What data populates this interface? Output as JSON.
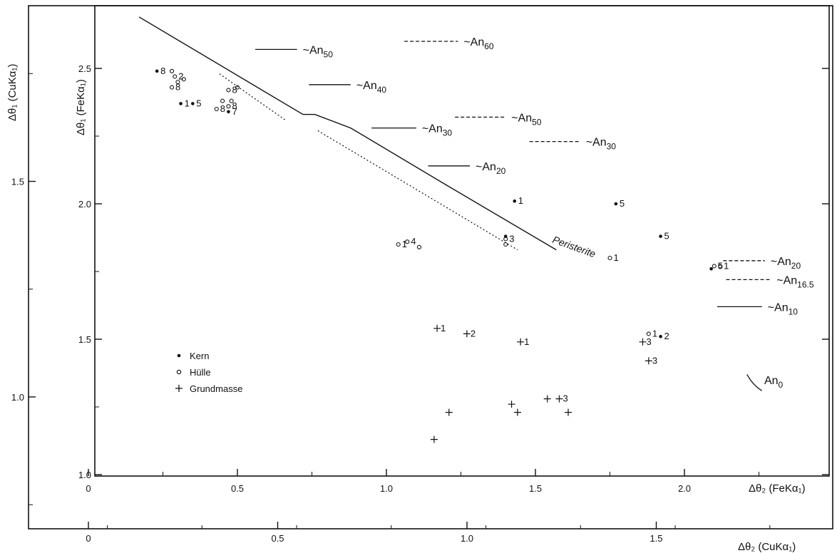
{
  "chart_data": {
    "type": "scatter",
    "outer_axes": {
      "xlabel": "Δθ₂ (CuKα₁)",
      "ylabel": "Δθ₁ (CuKα₁)",
      "x_ticks": [
        "0",
        "0.5",
        "1.0",
        "1.5"
      ],
      "y_ticks": [
        "1.0",
        "1.5",
        "2.0"
      ]
    },
    "inner_axes": {
      "xlabel": "Δθ₂ (FeKα₁)",
      "ylabel": "Δθ₁ (FeKα₁)",
      "x_ticks": [
        "0",
        "0.5",
        "1.0",
        "1.5",
        "2.0"
      ],
      "y_ticks": [
        "1.0",
        "1.5",
        "2.0",
        "2.5"
      ],
      "xlim": [
        0,
        2.45
      ],
      "ylim": [
        1.0,
        2.65
      ]
    },
    "legend": {
      "position": "lower-left",
      "entries": [
        {
          "symbol": "filled",
          "label": "Kern"
        },
        {
          "symbol": "open",
          "label": "Hülle"
        },
        {
          "symbol": "plus",
          "label": "Grundmasse"
        }
      ]
    },
    "series": [
      {
        "name": "Kern",
        "points": [
          {
            "x": 0.23,
            "y": 2.49,
            "label": "8"
          },
          {
            "x": 0.31,
            "y": 2.37,
            "label": "1"
          },
          {
            "x": 0.35,
            "y": 2.37,
            "label": "5"
          },
          {
            "x": 0.47,
            "y": 2.34,
            "label": "7"
          },
          {
            "x": 1.43,
            "y": 2.01,
            "label": "1"
          },
          {
            "x": 1.77,
            "y": 2.0,
            "label": "5"
          },
          {
            "x": 1.92,
            "y": 1.88,
            "label": "5"
          },
          {
            "x": 1.92,
            "y": 1.51,
            "label": "2"
          },
          {
            "x": 2.09,
            "y": 1.76,
            "label": ""
          },
          {
            "x": 1.4,
            "y": 1.88,
            "label": ""
          }
        ]
      },
      {
        "name": "Hülle",
        "points": [
          {
            "x": 0.28,
            "y": 2.49,
            "label": ""
          },
          {
            "x": 0.29,
            "y": 2.47,
            "label": "2"
          },
          {
            "x": 0.3,
            "y": 2.45,
            "label": ""
          },
          {
            "x": 0.32,
            "y": 2.46,
            "label": ""
          },
          {
            "x": 0.28,
            "y": 2.43,
            "label": "8"
          },
          {
            "x": 0.43,
            "y": 2.35,
            "label": "8"
          },
          {
            "x": 0.45,
            "y": 2.38,
            "label": ""
          },
          {
            "x": 0.47,
            "y": 2.36,
            "label": "8"
          },
          {
            "x": 0.48,
            "y": 2.38,
            "label": ""
          },
          {
            "x": 0.5,
            "y": 2.43,
            "label": ""
          },
          {
            "x": 0.47,
            "y": 2.42,
            "label": "8"
          },
          {
            "x": 1.04,
            "y": 1.85,
            "label": "1"
          },
          {
            "x": 1.07,
            "y": 1.86,
            "label": "4"
          },
          {
            "x": 1.11,
            "y": 1.84,
            "label": ""
          },
          {
            "x": 1.4,
            "y": 1.87,
            "label": "3"
          },
          {
            "x": 1.4,
            "y": 1.85,
            "label": ""
          },
          {
            "x": 1.75,
            "y": 1.8,
            "label": "1"
          },
          {
            "x": 1.88,
            "y": 1.52,
            "label": "1"
          },
          {
            "x": 2.12,
            "y": 1.77,
            "label": "1"
          },
          {
            "x": 2.1,
            "y": 1.77,
            "label": "5"
          }
        ]
      },
      {
        "name": "Grundmasse",
        "points": [
          {
            "x": 1.17,
            "y": 1.54,
            "label": "1"
          },
          {
            "x": 1.27,
            "y": 1.52,
            "label": "2"
          },
          {
            "x": 1.45,
            "y": 1.49,
            "label": "1"
          },
          {
            "x": 1.86,
            "y": 1.49,
            "label": "3"
          },
          {
            "x": 1.88,
            "y": 1.42,
            "label": "3"
          },
          {
            "x": 1.58,
            "y": 1.28,
            "label": "3"
          },
          {
            "x": 1.54,
            "y": 1.28,
            "label": ""
          },
          {
            "x": 1.42,
            "y": 1.26,
            "label": ""
          },
          {
            "x": 1.21,
            "y": 1.23,
            "label": ""
          },
          {
            "x": 1.44,
            "y": 1.23,
            "label": ""
          },
          {
            "x": 1.61,
            "y": 1.23,
            "label": ""
          },
          {
            "x": 1.16,
            "y": 1.13,
            "label": ""
          }
        ]
      }
    ],
    "annotations": [
      {
        "text": "~An",
        "sub": "50",
        "style": "solid",
        "x1": 0.56,
        "x2": 0.7,
        "y": 2.57
      },
      {
        "text": "~An",
        "sub": "60",
        "style": "dashed",
        "x1": 1.06,
        "x2": 1.24,
        "y": 2.6
      },
      {
        "text": "~An",
        "sub": "40",
        "style": "solid",
        "x1": 0.74,
        "x2": 0.88,
        "y": 2.44
      },
      {
        "text": "~An",
        "sub": "50",
        "style": "dashed",
        "x1": 1.23,
        "x2": 1.4,
        "y": 2.32
      },
      {
        "text": "~An",
        "sub": "30",
        "style": "solid",
        "x1": 0.95,
        "x2": 1.1,
        "y": 2.28
      },
      {
        "text": "~An",
        "sub": "30",
        "style": "dashed",
        "x1": 1.48,
        "x2": 1.65,
        "y": 2.23
      },
      {
        "text": "~An",
        "sub": "20",
        "style": "solid",
        "x1": 1.14,
        "x2": 1.28,
        "y": 2.14
      },
      {
        "text": "~An",
        "sub": "20",
        "style": "dashed",
        "x1": 2.13,
        "x2": 2.27,
        "y": 1.79
      },
      {
        "text": "~An",
        "sub": "16.5",
        "style": "dashed",
        "x1": 2.14,
        "x2": 2.29,
        "y": 1.72
      },
      {
        "text": "~An",
        "sub": "10",
        "style": "solid",
        "x1": 2.11,
        "x2": 2.26,
        "y": 1.62
      },
      {
        "text": "An",
        "sub": "0",
        "style": "none",
        "x1": 2.22,
        "x2": 2.22,
        "y": 1.35
      }
    ],
    "peristerite_label": "Peristerite"
  }
}
